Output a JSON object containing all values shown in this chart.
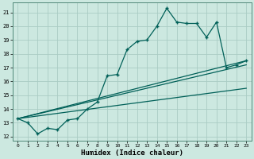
{
  "background_color": "#cce8e0",
  "grid_color": "#aaccc4",
  "line_color": "#006058",
  "xlabel": "Humidex (Indice chaleur)",
  "xlim": [
    -0.5,
    23.5
  ],
  "ylim": [
    11.7,
    21.7
  ],
  "yticks": [
    12,
    13,
    14,
    15,
    16,
    17,
    18,
    19,
    20,
    21
  ],
  "xticks": [
    0,
    1,
    2,
    3,
    4,
    5,
    6,
    7,
    8,
    9,
    10,
    11,
    12,
    13,
    14,
    15,
    16,
    17,
    18,
    19,
    20,
    21,
    22,
    23
  ],
  "curve_x": [
    0,
    1,
    2,
    3,
    4,
    5,
    6,
    7,
    8,
    9,
    10,
    11,
    12,
    13,
    14,
    15,
    16,
    17,
    18,
    19,
    20,
    21,
    22,
    23
  ],
  "curve_y": [
    13.3,
    13.0,
    12.2,
    12.6,
    12.5,
    13.2,
    13.3,
    14.0,
    14.5,
    16.4,
    16.5,
    18.3,
    18.9,
    19.0,
    20.0,
    21.3,
    20.3,
    20.2,
    20.2,
    19.2,
    20.3,
    17.0,
    17.2,
    17.5
  ],
  "line1_x": [
    0,
    23
  ],
  "line1_y": [
    13.3,
    17.5
  ],
  "line2_x": [
    0,
    23
  ],
  "line2_y": [
    13.3,
    15.5
  ],
  "line3_x": [
    0,
    23
  ],
  "line3_y": [
    13.3,
    17.2
  ]
}
